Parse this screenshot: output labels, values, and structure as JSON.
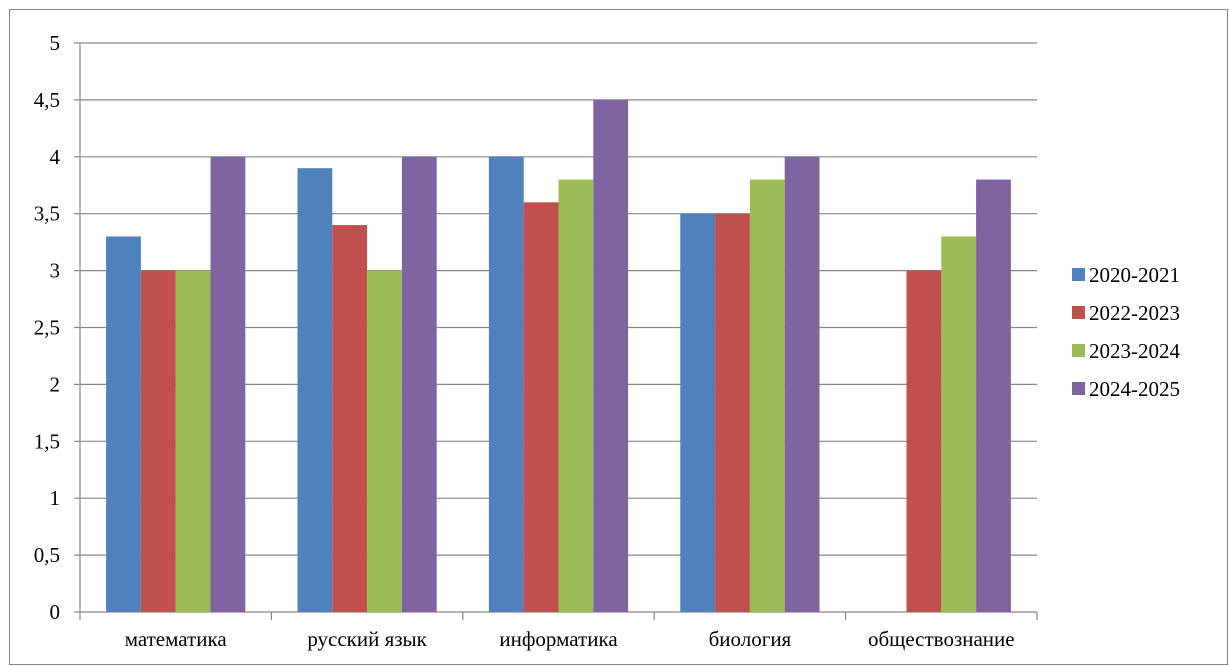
{
  "chart_data": {
    "type": "bar",
    "title": "",
    "xlabel": "",
    "ylabel": "",
    "categories": [
      "математика",
      "русский язык",
      "информатика",
      "биология",
      "обществознание"
    ],
    "series": [
      {
        "name": "2020-2021",
        "color": "#4F81BD",
        "values": [
          3.3,
          3.9,
          4.0,
          3.5,
          0
        ]
      },
      {
        "name": "2022-2023",
        "color": "#C0504D",
        "values": [
          3.0,
          3.4,
          3.6,
          3.5,
          3.0
        ]
      },
      {
        "name": "2023-2024",
        "color": "#9BBB59",
        "values": [
          3.0,
          3.0,
          3.8,
          3.8,
          3.3
        ]
      },
      {
        "name": "2024-2025",
        "color": "#8064A2",
        "values": [
          4.0,
          4.0,
          4.5,
          4.0,
          3.8
        ]
      }
    ],
    "ylim": [
      0,
      5
    ],
    "yticks": [
      "0",
      "0,5",
      "1",
      "1,5",
      "2",
      "2,5",
      "3",
      "3,5",
      "4",
      "4,5",
      "5"
    ],
    "grid": true,
    "legend_position": "right"
  }
}
